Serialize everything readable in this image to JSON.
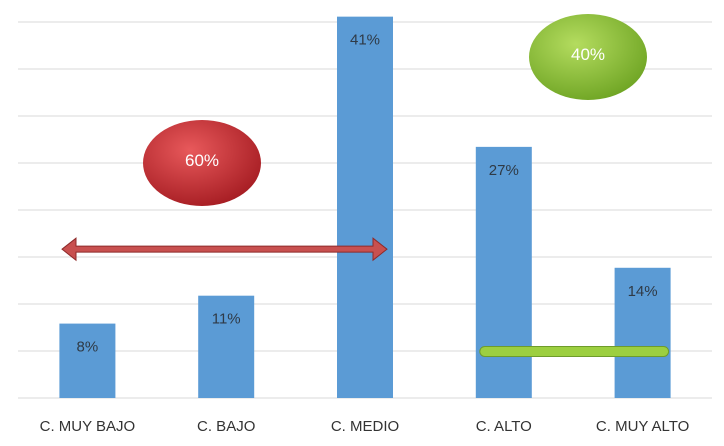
{
  "chart_data": {
    "type": "bar",
    "categories": [
      "C. MUY BAJO",
      "C. BAJO",
      "C. MEDIO",
      "C. ALTO",
      "C. MUY ALTO"
    ],
    "values": [
      8,
      11,
      41,
      27,
      14
    ],
    "value_labels": [
      "8%",
      "11%",
      "41%",
      "27%",
      "14%"
    ],
    "ylim": [
      0,
      41.5
    ],
    "grid": true,
    "legend": "none",
    "bar_color": "#5b9bd5",
    "grid_color": "#d9d9d9",
    "annotations": [
      {
        "name": "low-group",
        "label": "60%",
        "color": "#c0262b",
        "span": [
          "C. MUY BAJO",
          "C. MEDIO"
        ],
        "arrow_level": 16,
        "arrow_color": "#c8504f"
      },
      {
        "name": "high-group",
        "label": "40%",
        "color": "#8fc43a",
        "span": [
          "C. ALTO",
          "C. MUY ALTO"
        ],
        "arrow_level": 5,
        "arrow_color": "#9ccf40"
      }
    ]
  }
}
